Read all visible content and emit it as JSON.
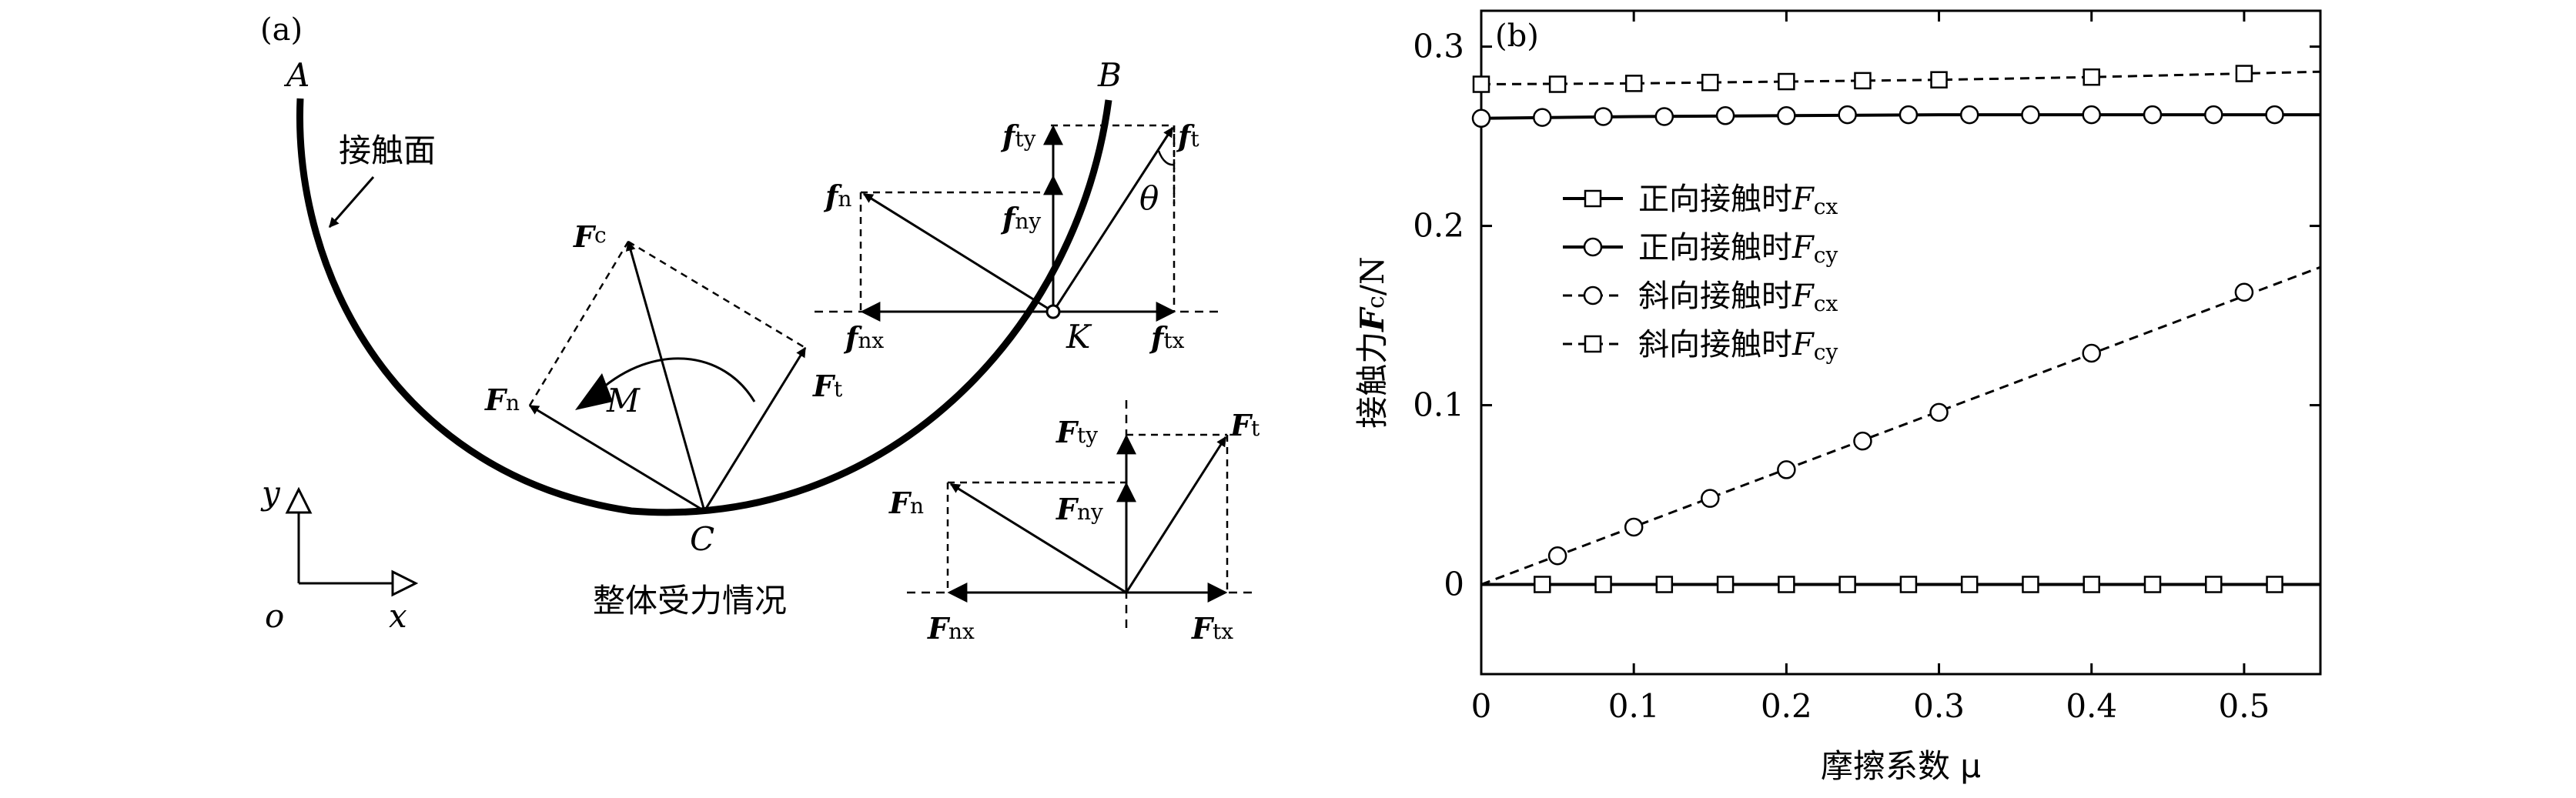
{
  "panel_a": {
    "label": "(a)",
    "points": {
      "A": "A",
      "B": "B",
      "C": "C",
      "K": "K",
      "o": "o"
    },
    "axes": {
      "x": "x",
      "y": "y"
    },
    "contact_surface": "接触面",
    "caption": "整体受力情况",
    "moment": "M",
    "angle": "θ",
    "F": "F",
    "f": "f",
    "subs": {
      "c": "c",
      "n": "n",
      "t": "t",
      "nx": "nx",
      "ny": "ny",
      "tx": "tx",
      "ty": "ty"
    }
  },
  "chart_data": {
    "type": "line",
    "panel_label": "(b)",
    "xlabel": "摩擦系数 μ",
    "ylabel_prefix": "接触力",
    "ylabel_F": "F",
    "ylabel_sub": "c",
    "ylabel_suffix": "/N",
    "xlim": [
      0,
      0.55
    ],
    "ylim": [
      -0.05,
      0.32
    ],
    "xticks": [
      0,
      0.1,
      0.2,
      0.3,
      0.4,
      0.5
    ],
    "xtick_labels": [
      "0",
      "0.1",
      "0.2",
      "0.3",
      "0.4",
      "0.5"
    ],
    "yticks": [
      0,
      0.1,
      0.2,
      0.3
    ],
    "ytick_labels": [
      "0",
      "0.1",
      "0.2",
      "0.3"
    ],
    "legend_position": "left",
    "series": [
      {
        "name": "正向接触时F_cx",
        "label_text": "正向接触时",
        "label_F": "F",
        "label_sub": "cx",
        "line": "solid",
        "marker": "square",
        "x": [
          0,
          0.55
        ],
        "y": [
          0,
          0
        ],
        "marker_x": [
          0.04,
          0.08,
          0.12,
          0.16,
          0.2,
          0.24,
          0.28,
          0.32,
          0.36,
          0.4,
          0.44,
          0.48,
          0.52
        ],
        "marker_y": [
          0,
          0,
          0,
          0,
          0,
          0,
          0,
          0,
          0,
          0,
          0,
          0,
          0
        ]
      },
      {
        "name": "正向接触时F_cy",
        "label_text": "正向接触时",
        "label_F": "F",
        "label_sub": "cy",
        "line": "solid",
        "marker": "circle",
        "x": [
          0,
          0.05,
          0.1,
          0.2,
          0.3,
          0.4,
          0.5,
          0.55
        ],
        "y": [
          0.26,
          0.2605,
          0.261,
          0.2615,
          0.262,
          0.262,
          0.262,
          0.262
        ],
        "marker_x": [
          0,
          0.04,
          0.08,
          0.12,
          0.16,
          0.2,
          0.24,
          0.28,
          0.32,
          0.36,
          0.4,
          0.44,
          0.48,
          0.52
        ],
        "marker_y": [
          0.26,
          0.2605,
          0.261,
          0.261,
          0.2615,
          0.2615,
          0.262,
          0.262,
          0.262,
          0.262,
          0.262,
          0.262,
          0.262,
          0.262
        ]
      },
      {
        "name": "斜向接触时F_cx",
        "label_text": "斜向接触时",
        "label_F": "F",
        "label_sub": "cx",
        "line": "dashed",
        "marker": "circle",
        "x": [
          0,
          0.55
        ],
        "y": [
          0,
          0.177
        ],
        "marker_x": [
          0.05,
          0.1,
          0.15,
          0.2,
          0.25,
          0.3,
          0.4,
          0.5
        ],
        "marker_y": [
          0.016,
          0.032,
          0.048,
          0.064,
          0.08,
          0.096,
          0.129,
          0.163
        ]
      },
      {
        "name": "斜向接触时F_cy",
        "label_text": "斜向接触时",
        "label_F": "F",
        "label_sub": "cy",
        "line": "dashed",
        "marker": "square",
        "x": [
          0,
          0.1,
          0.2,
          0.3,
          0.4,
          0.5,
          0.55
        ],
        "y": [
          0.279,
          0.2795,
          0.2805,
          0.2815,
          0.283,
          0.285,
          0.286
        ],
        "marker_x": [
          0,
          0.05,
          0.1,
          0.15,
          0.2,
          0.25,
          0.3,
          0.4,
          0.5
        ],
        "marker_y": [
          0.279,
          0.279,
          0.2795,
          0.28,
          0.2805,
          0.281,
          0.2815,
          0.283,
          0.285
        ]
      }
    ]
  }
}
